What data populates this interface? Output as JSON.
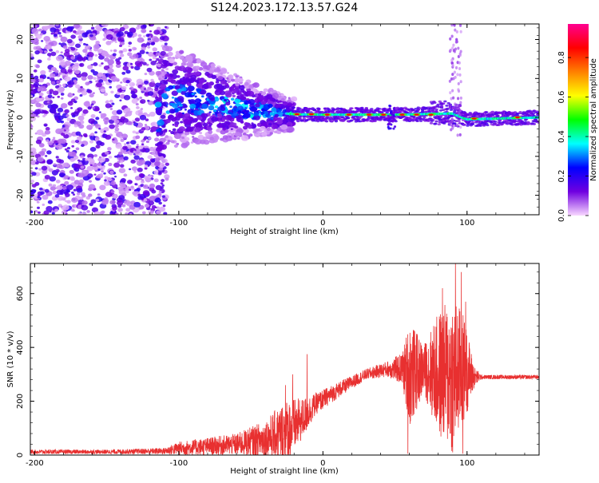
{
  "title": "S124.2023.172.13.57.G24",
  "chart_data": [
    {
      "type": "heatmap",
      "xlabel": "Height of straight line (km)",
      "ylabel": "Frequency (Hz)",
      "xlim": [
        -203,
        150
      ],
      "ylim": [
        -25,
        24
      ],
      "xticks": [
        -200,
        -100,
        0,
        100
      ],
      "yticks": [
        -20,
        -10,
        0,
        10,
        20
      ],
      "colorbar": {
        "label": "Normalized spectral amplitude",
        "range": [
          0,
          0.97
        ],
        "ticks": [
          0.0,
          0.2,
          0.4,
          0.6,
          0.8
        ],
        "tick_labels": [
          "0.0",
          "0.2",
          "0.4",
          "0.6",
          "0.8"
        ],
        "colors": [
          "#f8d8ff",
          "#7000e0",
          "#0000ff",
          "#00ffff",
          "#00ff00",
          "#ffff00",
          "#ff8000",
          "#ff0000",
          "#ff0090"
        ]
      },
      "ridge": {
        "description_free": true,
        "points": [
          {
            "x": -110,
            "y": 5
          },
          {
            "x": -80,
            "y": 4
          },
          {
            "x": -50,
            "y": 2
          },
          {
            "x": -20,
            "y": 0.8
          },
          {
            "x": 0,
            "y": 0.7
          },
          {
            "x": 50,
            "y": 0.7
          },
          {
            "x": 90,
            "y": 1
          },
          {
            "x": 100,
            "y": -0.5
          },
          {
            "x": 150,
            "y": 0
          }
        ]
      }
    },
    {
      "type": "line",
      "xlabel": "Height of straight line (km)",
      "ylabel": "SNR (10 * v/v)",
      "xlim": [
        -203,
        150
      ],
      "ylim": [
        0,
        712
      ],
      "xticks": [
        -200,
        -100,
        0,
        100
      ],
      "yticks": [
        0,
        200,
        400,
        600
      ],
      "color": "#e83030",
      "envelope": [
        {
          "x": -203,
          "base": 12,
          "noise": 8
        },
        {
          "x": -150,
          "base": 12,
          "noise": 8
        },
        {
          "x": -110,
          "base": 15,
          "noise": 12
        },
        {
          "x": -100,
          "base": 25,
          "noise": 25
        },
        {
          "x": -60,
          "base": 40,
          "noise": 40
        },
        {
          "x": -40,
          "base": 60,
          "noise": 70
        },
        {
          "x": -25,
          "base": 90,
          "noise": 120
        },
        {
          "x": -15,
          "base": 130,
          "noise": 80
        },
        {
          "x": -5,
          "base": 190,
          "noise": 40
        },
        {
          "x": 10,
          "base": 240,
          "noise": 30
        },
        {
          "x": 30,
          "base": 300,
          "noise": 20
        },
        {
          "x": 45,
          "base": 320,
          "noise": 30
        },
        {
          "x": 55,
          "base": 320,
          "noise": 60
        },
        {
          "x": 60,
          "base": 300,
          "noise": 200
        },
        {
          "x": 70,
          "base": 320,
          "noise": 90
        },
        {
          "x": 80,
          "base": 300,
          "noise": 230
        },
        {
          "x": 90,
          "base": 300,
          "noise": 300
        },
        {
          "x": 98,
          "base": 320,
          "noise": 200
        },
        {
          "x": 105,
          "base": 290,
          "noise": 40
        },
        {
          "x": 110,
          "base": 290,
          "noise": 8
        },
        {
          "x": 150,
          "base": 290,
          "noise": 8
        }
      ],
      "peaks": [
        {
          "x": -26,
          "y": 260
        },
        {
          "x": -21,
          "y": 300
        },
        {
          "x": -11,
          "y": 375
        },
        {
          "x": 59,
          "y": 665
        },
        {
          "x": 65,
          "y": 450
        },
        {
          "x": 83,
          "y": 620
        },
        {
          "x": 92,
          "y": 712
        },
        {
          "x": 96,
          "y": 680
        },
        {
          "x": 99,
          "y": 570
        },
        {
          "x": 59,
          "y": 5
        },
        {
          "x": 90,
          "y": 10
        },
        {
          "x": 97,
          "y": 5
        }
      ]
    }
  ]
}
